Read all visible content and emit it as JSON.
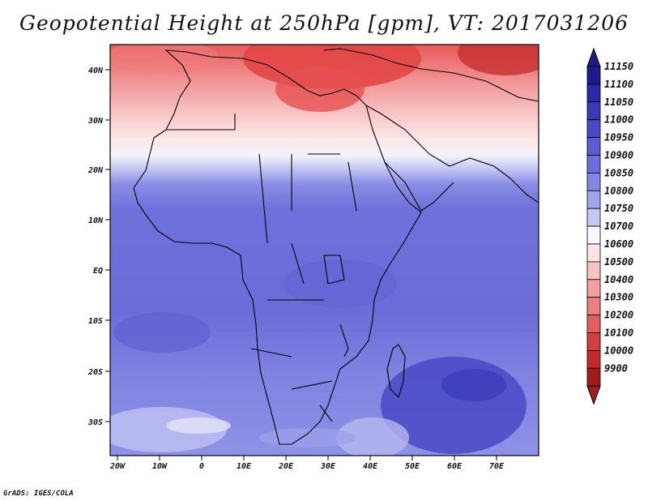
{
  "title": "Geopotential Height at 250hPa [gpm], VT: 2017031206",
  "credit": "GrADS: IGES/COLA",
  "map": {
    "lat_ticks": [
      "40N",
      "30N",
      "20N",
      "10N",
      "EQ",
      "10S",
      "20S",
      "30S"
    ],
    "lon_ticks": [
      "20W",
      "10W",
      "0",
      "10E",
      "20E",
      "30E",
      "40E",
      "50E",
      "60E",
      "70E"
    ],
    "region": "Africa, Mediterranean, Middle East, Indian Ocean"
  },
  "colorbar": {
    "levels": [
      "11150",
      "11100",
      "11050",
      "11000",
      "10950",
      "10900",
      "10850",
      "10800",
      "10750",
      "10700",
      "10600",
      "10500",
      "10400",
      "10300",
      "10200",
      "10100",
      "10000",
      "9900"
    ],
    "colors": [
      "#1f1a8c",
      "#2b29a8",
      "#3a39b8",
      "#4a49c6",
      "#5b5bd2",
      "#6d6edb",
      "#8486e3",
      "#a2a4ec",
      "#c6c8f4",
      "#f6f6fc",
      "#fde4e4",
      "#f9c2c2",
      "#f3a0a0",
      "#ec7f7f",
      "#e35d5d",
      "#d53e3e",
      "#c42a2a",
      "#a01c1c"
    ]
  }
}
